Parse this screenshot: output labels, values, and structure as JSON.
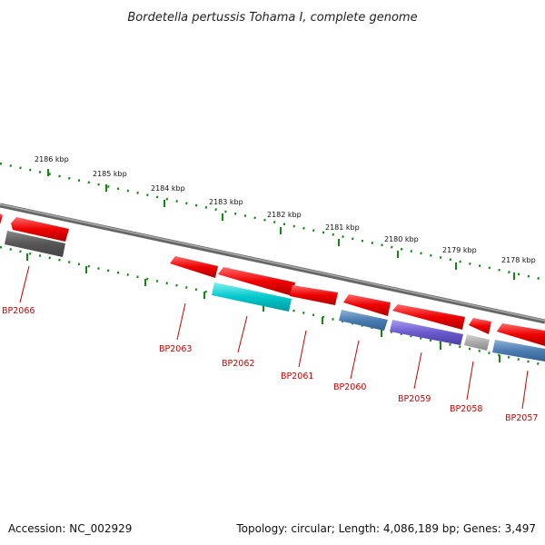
{
  "title": "Bordetella pertussis Tohama I, complete genome",
  "scale_labels": [
    "2186 kbp",
    "2185 kbp",
    "2184 kbp",
    "2183 kbp",
    "2182 kbp",
    "2181 kbp",
    "2180 kbp",
    "2179 kbp",
    "2178 kbp"
  ],
  "genes": [
    {
      "label": "BP2066"
    },
    {
      "label": "BP2063"
    },
    {
      "label": "BP2062"
    },
    {
      "label": "BP2061"
    },
    {
      "label": "BP2060"
    },
    {
      "label": "BP2059"
    },
    {
      "label": "BP2058"
    },
    {
      "label": "BP2057"
    }
  ],
  "footer": {
    "accession": "Accession: NC_002929",
    "summary": "Topology: circular; Length: 4,086,189 bp; Genes: 3,497"
  },
  "colors": {
    "cds": "#ee0000",
    "backbone": "#777777",
    "ticks": "#118811",
    "dark_gray": "#555555",
    "cyan": "#00c8cc",
    "steel_blue": "#4b7db3",
    "slate_blue": "#6a5acd",
    "light_gray": "#aaaaaa"
  }
}
